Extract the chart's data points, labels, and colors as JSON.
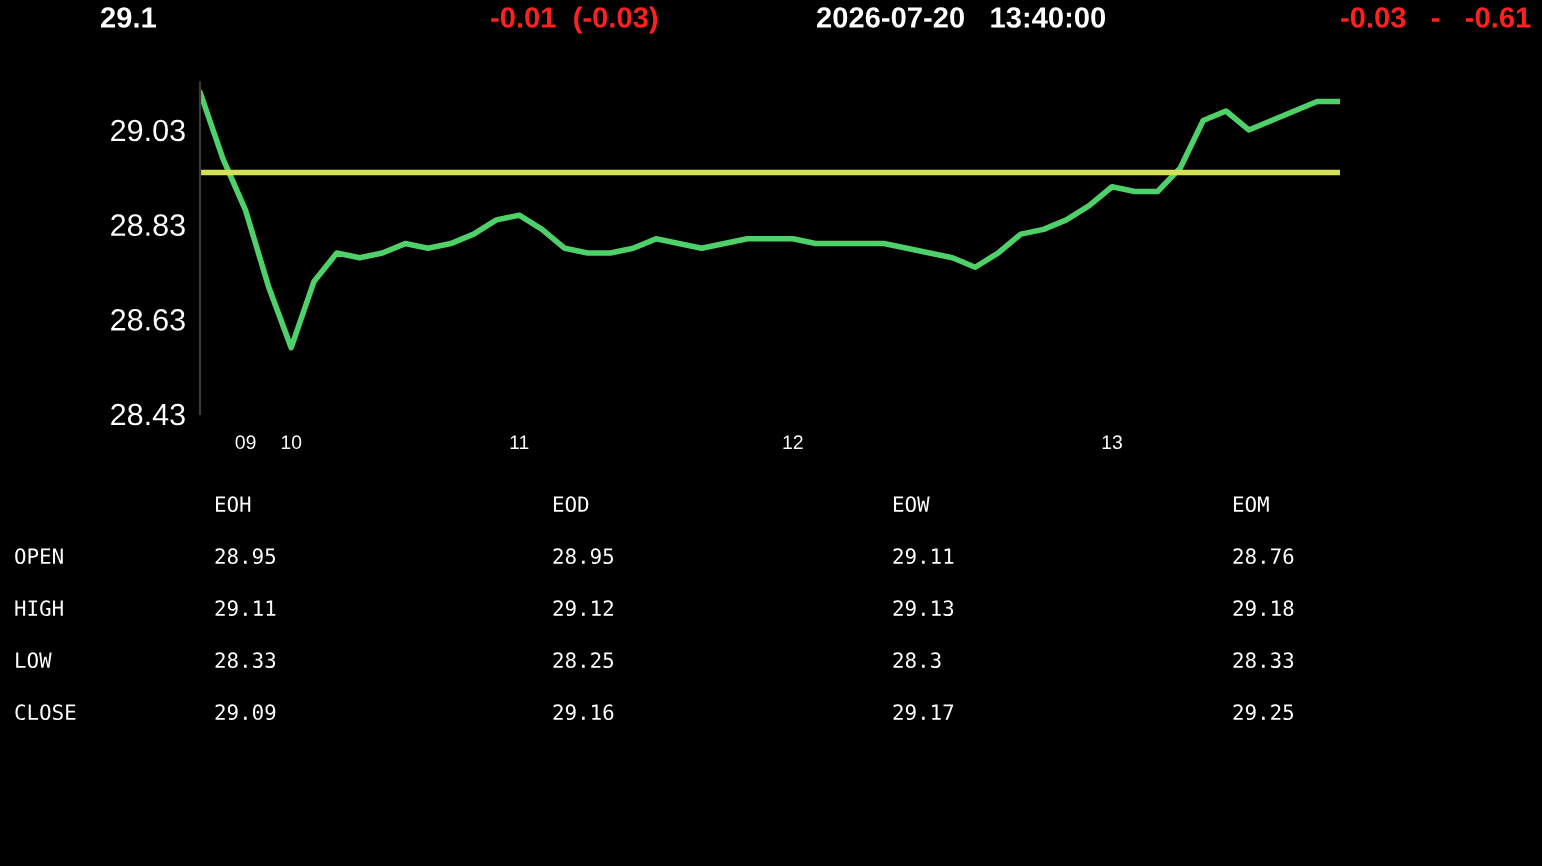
{
  "chart_data": [
    {
      "type": "line",
      "title": "29.1",
      "annotations": [
        "-0.01  (-0.03)",
        "2026-07-20   13:40:00",
        "-0.03   -   -0.61"
      ],
      "categories": [
        null,
        null,
        "09",
        null,
        "10",
        null,
        null,
        null,
        null,
        null,
        null,
        null,
        null,
        null,
        "11",
        null,
        null,
        null,
        null,
        null,
        null,
        null,
        null,
        null,
        null,
        null,
        "12",
        null,
        null,
        null,
        null,
        null,
        null,
        null,
        null,
        null,
        null,
        null,
        null,
        null,
        "13",
        null,
        null,
        null,
        null,
        null,
        null,
        null,
        null,
        null,
        null
      ],
      "series": [
        {
          "color": "#4fd16a",
          "values": [
            29.11,
            28.97,
            28.86,
            28.7,
            28.57,
            28.71,
            28.77,
            28.76,
            28.77,
            28.79,
            28.78,
            28.79,
            28.81,
            28.84,
            28.85,
            28.82,
            28.78,
            28.77,
            28.77,
            28.78,
            28.8,
            28.79,
            28.78,
            28.79,
            28.8,
            28.8,
            28.8,
            28.79,
            28.79,
            28.79,
            28.79,
            28.78,
            28.77,
            28.76,
            28.74,
            28.77,
            28.81,
            28.82,
            28.84,
            28.87,
            28.91,
            28.9,
            28.9,
            28.95,
            29.05,
            29.07,
            29.03,
            29.05,
            29.07,
            29.09,
            29.09
          ]
        }
      ],
      "ref_lines": [
        {
          "axis": "y",
          "value": 28.94,
          "color": "#d4e157"
        }
      ],
      "ylim": [
        28.43,
        29.13
      ],
      "yticks": [
        28.43,
        28.63,
        28.83,
        29.03
      ],
      "grid": false,
      "legend": false,
      "marker": "none",
      "line_style": "solid"
    },
    {
      "type": "other",
      "annotations": [
        "EOH",
        "EOD",
        "EOW",
        "EOM",
        "OPEN",
        "28.95",
        "28.95",
        "29.11",
        "28.76",
        "HIGH",
        "29.11",
        "29.12",
        "29.13",
        "29.18",
        "LOW",
        "28.33",
        "28.25",
        "28.3",
        "28.33",
        "CLOSE",
        "29.09",
        "29.16",
        "29.17",
        "29.25"
      ]
    }
  ]
}
